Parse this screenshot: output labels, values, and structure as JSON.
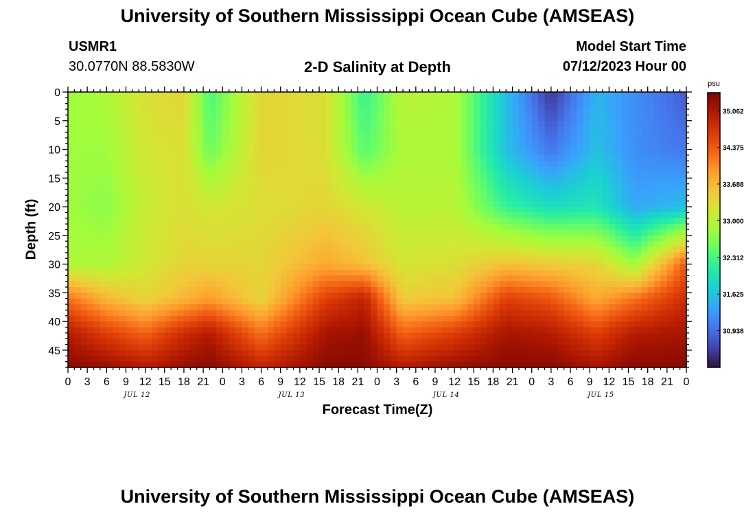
{
  "header": {
    "title": "University of Southern Mississippi Ocean Cube (AMSEAS)",
    "station_id": "USMR1",
    "station_coords": "30.0770N  88.5830W",
    "plot_title": "2-D Salinity at Depth",
    "model_start_label": "Model Start Time",
    "model_start_value": "07/12/2023 Hour 00"
  },
  "footer": {
    "title": "University of Southern Mississippi Ocean Cube (AMSEAS)"
  },
  "chart_data": {
    "type": "heatmap",
    "title": "2-D Salinity at Depth",
    "xlabel": "Forecast Time(Z)",
    "ylabel": "Depth (ft)",
    "x_tick_labels": [
      "0",
      "3",
      "6",
      "9",
      "12",
      "15",
      "18",
      "21",
      "0",
      "3",
      "6",
      "9",
      "12",
      "15",
      "18",
      "21",
      "0",
      "3",
      "6",
      "9",
      "12",
      "15",
      "18",
      "21",
      "0",
      "3",
      "6",
      "9",
      "12",
      "15",
      "18",
      "21",
      "0"
    ],
    "x_day_labels": [
      "JUL 12",
      "JUL 13",
      "JUL 14",
      "JUL 15"
    ],
    "xlim_hours": [
      0,
      96
    ],
    "y_tick_labels": [
      "0",
      "5",
      "10",
      "15",
      "20",
      "25",
      "30",
      "35",
      "40",
      "45"
    ],
    "ylim": [
      0,
      48
    ],
    "y_inverted": true,
    "colorbar": {
      "unit": "psu",
      "tick_labels": [
        "35.062",
        "34.375",
        "33.688",
        "33.000",
        "32.312",
        "31.625",
        "30.938"
      ],
      "range": [
        30.25,
        35.4
      ],
      "colors": [
        "#30123b",
        "#4145ab",
        "#4675ed",
        "#39a2fc",
        "#1bcfd4",
        "#24eca6",
        "#61fc6c",
        "#a4fc3b",
        "#d1e834",
        "#f3c63a",
        "#fe9b2d",
        "#f36315",
        "#d93806",
        "#b11901",
        "#7a0402"
      ]
    },
    "time_hours": [
      0,
      6,
      12,
      18,
      22,
      30,
      40,
      46,
      52,
      60,
      68,
      75,
      82,
      88,
      96
    ],
    "depth_ft": [
      0,
      10,
      20,
      30,
      36,
      42,
      48
    ],
    "salinity_psu": [
      [
        32.8,
        32.8,
        32.8,
        32.9,
        34.2,
        35.0,
        35.3
      ],
      [
        32.9,
        32.8,
        32.7,
        32.9,
        33.7,
        34.6,
        35.2
      ],
      [
        33.3,
        33.2,
        33.1,
        33.2,
        33.4,
        34.3,
        35.0
      ],
      [
        33.4,
        33.3,
        33.3,
        33.4,
        33.7,
        34.8,
        35.2
      ],
      [
        32.3,
        32.5,
        33.2,
        33.4,
        33.9,
        35.0,
        35.3
      ],
      [
        33.4,
        33.4,
        33.3,
        33.4,
        33.4,
        34.2,
        34.9
      ],
      [
        33.3,
        33.3,
        33.4,
        33.8,
        34.6,
        35.1,
        35.3
      ],
      [
        32.2,
        32.4,
        33.2,
        33.6,
        34.9,
        35.2,
        35.3
      ],
      [
        33.0,
        32.9,
        33.0,
        33.2,
        33.5,
        34.3,
        35.0
      ],
      [
        32.9,
        32.9,
        33.0,
        33.3,
        33.6,
        34.6,
        35.2
      ],
      [
        31.6,
        31.6,
        32.2,
        33.6,
        34.6,
        35.1,
        35.3
      ],
      [
        30.5,
        31.0,
        31.9,
        33.5,
        34.4,
        35.0,
        35.3
      ],
      [
        31.5,
        31.6,
        32.0,
        33.4,
        33.8,
        34.6,
        35.1
      ],
      [
        31.2,
        31.2,
        31.4,
        32.8,
        34.2,
        35.0,
        35.3
      ],
      [
        30.8,
        31.0,
        31.6,
        34.4,
        34.8,
        35.1,
        35.3
      ]
    ]
  }
}
